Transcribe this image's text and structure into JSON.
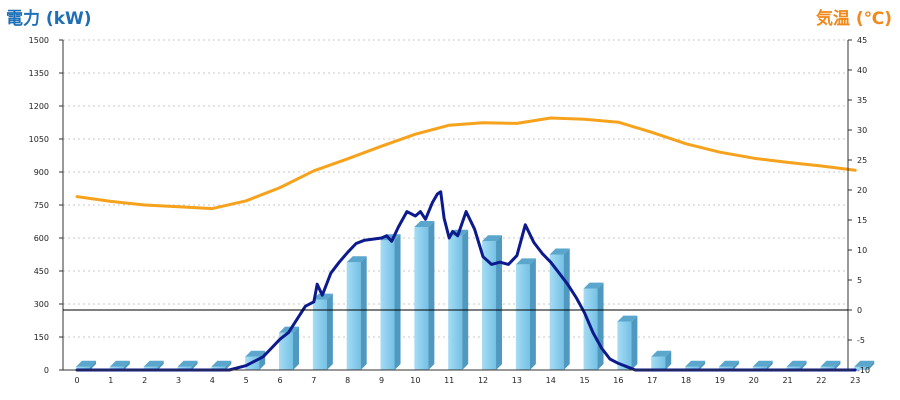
{
  "chart_data": {
    "type": "bar",
    "ylabel_left": "電力 (kW)",
    "ylabel_right": "気温 (℃)",
    "categories": [
      "0",
      "1",
      "2",
      "3",
      "4",
      "5",
      "6",
      "7",
      "8",
      "9",
      "10",
      "11",
      "12",
      "13",
      "14",
      "15",
      "16",
      "17",
      "18",
      "19",
      "20",
      "21",
      "22",
      "23"
    ],
    "y_left": {
      "range": [
        0,
        1500
      ],
      "ticks": [
        "0",
        "150",
        "300",
        "450",
        "600",
        "750",
        "900",
        "1050",
        "1200",
        "1350",
        "1500"
      ]
    },
    "y_right": {
      "range": [
        -10,
        45
      ],
      "ticks": [
        "-10",
        "-5",
        "0",
        "5",
        "10",
        "15",
        "20",
        "25",
        "30",
        "35",
        "40",
        "45"
      ]
    },
    "grid": true,
    "series": [
      {
        "kind": "bar",
        "axis": "left",
        "values": [
          15,
          15,
          15,
          15,
          15,
          60,
          170,
          320,
          490,
          590,
          650,
          610,
          585,
          480,
          525,
          370,
          220,
          60,
          15,
          15,
          15,
          15,
          15,
          15
        ]
      },
      {
        "kind": "line",
        "axis": "left",
        "x": [
          0,
          0.5,
          1,
          1.5,
          2,
          2.5,
          3,
          3.5,
          4,
          4.5,
          5,
          5.25,
          5.5,
          5.75,
          6,
          6.25,
          6.5,
          6.75,
          7,
          7.1,
          7.25,
          7.4,
          7.5,
          7.75,
          8,
          8.25,
          8.5,
          8.75,
          9,
          9.15,
          9.3,
          9.5,
          9.75,
          10,
          10.15,
          10.3,
          10.5,
          10.65,
          10.75,
          10.85,
          11,
          11.1,
          11.25,
          11.5,
          11.75,
          12,
          12.25,
          12.5,
          12.75,
          13,
          13.25,
          13.5,
          13.75,
          14,
          14.25,
          14.5,
          14.75,
          15,
          15.25,
          15.5,
          15.75,
          16,
          16.25,
          16.5,
          16.75,
          17,
          17.5,
          18,
          18.5,
          19,
          20,
          21,
          22,
          23
        ],
        "values": [
          0,
          0,
          0,
          0,
          0,
          0,
          0,
          0,
          0,
          0,
          20,
          40,
          60,
          100,
          140,
          170,
          230,
          290,
          310,
          390,
          340,
          400,
          440,
          490,
          535,
          575,
          590,
          595,
          600,
          610,
          585,
          650,
          720,
          700,
          720,
          685,
          760,
          800,
          810,
          690,
          600,
          630,
          610,
          720,
          640,
          515,
          480,
          490,
          480,
          520,
          660,
          580,
          530,
          490,
          440,
          390,
          330,
          260,
          170,
          100,
          50,
          30,
          15,
          0,
          0,
          0,
          0,
          0,
          0,
          0,
          0,
          0,
          0,
          0
        ]
      },
      {
        "kind": "line",
        "axis": "right",
        "x": [
          0,
          1,
          2,
          3,
          4,
          5,
          6,
          7,
          8,
          9,
          10,
          11,
          12,
          13,
          14,
          15,
          16,
          17,
          18,
          19,
          20,
          21,
          22,
          23
        ],
        "values": [
          18.9,
          18.1,
          17.5,
          17.2,
          16.9,
          18.2,
          20.4,
          23.2,
          25.2,
          27.3,
          29.3,
          30.8,
          31.2,
          31.1,
          32.0,
          31.8,
          31.3,
          29.6,
          27.7,
          26.3,
          25.3,
          24.6,
          24.0,
          23.3
        ]
      }
    ]
  }
}
